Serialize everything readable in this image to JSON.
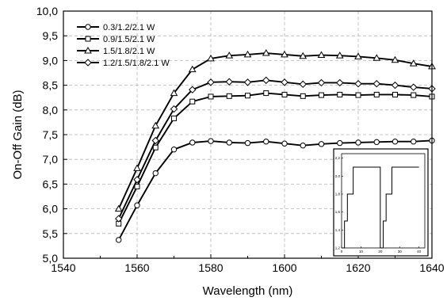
{
  "chart_data": [
    {
      "type": "line",
      "xlabel": "Wavelength (nm)",
      "ylabel": "On-Off Gain (dB)",
      "xlim": [
        1540,
        1640
      ],
      "ylim": [
        5.0,
        10.0
      ],
      "x_ticks": [
        1540,
        1560,
        1580,
        1600,
        1620,
        1640
      ],
      "x_tick_labels": [
        "1540",
        "1560",
        "1580",
        "1600",
        "1620",
        "1640"
      ],
      "y_ticks": [
        5.0,
        5.5,
        6.0,
        6.5,
        7.0,
        7.5,
        8.0,
        8.5,
        9.0,
        9.5,
        10.0
      ],
      "y_tick_labels": [
        "5,0",
        "5,5",
        "6,0",
        "6,5",
        "7,0",
        "7,5",
        "8,0",
        "8,5",
        "9,0",
        "9,5",
        "10,0"
      ],
      "grid": "dashed",
      "legend_position": "top-left",
      "x": [
        1555,
        1560,
        1565,
        1570,
        1575,
        1580,
        1585,
        1590,
        1595,
        1600,
        1605,
        1610,
        1615,
        1620,
        1625,
        1630,
        1635,
        1640
      ],
      "series": [
        {
          "name": "0.3/1.2/2.1 W",
          "marker": "circle",
          "values": [
            5.37,
            6.07,
            6.72,
            7.2,
            7.34,
            7.37,
            7.34,
            7.33,
            7.36,
            7.32,
            7.28,
            7.31,
            7.33,
            7.34,
            7.35,
            7.36,
            7.36,
            7.38
          ]
        },
        {
          "name": "0.9/1.5/2.1 W",
          "marker": "square",
          "values": [
            5.7,
            6.45,
            7.24,
            7.83,
            8.17,
            8.27,
            8.28,
            8.29,
            8.34,
            8.31,
            8.28,
            8.3,
            8.31,
            8.3,
            8.31,
            8.31,
            8.3,
            8.27
          ]
        },
        {
          "name": "1.5/1.8/2.1 W",
          "marker": "triangle",
          "values": [
            6.0,
            6.82,
            7.68,
            8.34,
            8.82,
            9.04,
            9.1,
            9.12,
            9.15,
            9.12,
            9.09,
            9.11,
            9.1,
            9.08,
            9.05,
            9.01,
            8.94,
            8.88
          ]
        },
        {
          "name": "1.2/1.5/1.8/2.1 W",
          "marker": "diamond",
          "values": [
            5.8,
            6.59,
            7.38,
            8.02,
            8.41,
            8.56,
            8.57,
            8.56,
            8.6,
            8.56,
            8.52,
            8.55,
            8.55,
            8.53,
            8.53,
            8.5,
            8.46,
            8.43
          ]
        }
      ]
    },
    {
      "type": "line",
      "xlim": [
        0,
        43
      ],
      "ylim": [
        1.2,
        2.25
      ],
      "x_ticks": [
        0,
        10,
        20,
        30,
        40
      ],
      "x_tick_labels": [
        "0",
        "10",
        "20",
        "30",
        "40"
      ],
      "y_ticks": [
        1.2,
        1.4,
        1.6,
        1.8,
        2.0,
        2.2
      ],
      "y_tick_labels": [
        "1,2",
        "1,4",
        "1,6",
        "1,8",
        "2,0",
        "2,2"
      ],
      "series": [
        {
          "values_step": [
            [
              0,
              1.2
            ],
            [
              1.5,
              1.2
            ],
            [
              1.5,
              1.5
            ],
            [
              3,
              1.5
            ],
            [
              3,
              1.8
            ],
            [
              6,
              1.8
            ],
            [
              6,
              2.1
            ],
            [
              20,
              2.1
            ],
            [
              20,
              1.2
            ],
            [
              21.5,
              1.2
            ],
            [
              21.5,
              1.5
            ],
            [
              23,
              1.5
            ],
            [
              23,
              1.8
            ],
            [
              26,
              1.8
            ],
            [
              26,
              2.1
            ],
            [
              40,
              2.1
            ]
          ]
        }
      ]
    }
  ]
}
